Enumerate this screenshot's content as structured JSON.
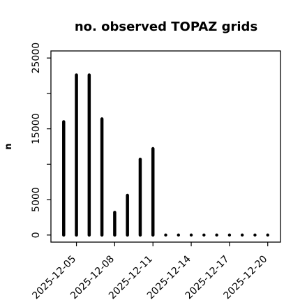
{
  "chart_data": {
    "type": "bar",
    "title": "no. observed TOPAZ grids",
    "xlabel": "",
    "ylabel": "n",
    "x_type": "date",
    "x": [
      "2025-12-04",
      "2025-12-05",
      "2025-12-06",
      "2025-12-07",
      "2025-12-08",
      "2025-12-09",
      "2025-12-10",
      "2025-12-11",
      "2025-12-12",
      "2025-12-13",
      "2025-12-14",
      "2025-12-15",
      "2025-12-16",
      "2025-12-17",
      "2025-12-18",
      "2025-12-19",
      "2025-12-20"
    ],
    "values": [
      16000,
      22600,
      22600,
      16400,
      3200,
      5600,
      10700,
      12200,
      0,
      0,
      0,
      0,
      0,
      0,
      0,
      0,
      0
    ],
    "xlim": [
      "2025-12-03",
      "2025-12-21"
    ],
    "ylim": [
      -1000,
      26000
    ],
    "yticks": [
      0,
      5000,
      15000,
      25000
    ],
    "ytick_marks": [
      0,
      5000,
      10000,
      15000,
      20000,
      25000
    ],
    "xticks": [
      "2025-12-05",
      "2025-12-08",
      "2025-12-11",
      "2025-12-14",
      "2025-12-17",
      "2025-12-20"
    ],
    "xtick_labels": [
      "2025-12-05",
      "2025-12-08",
      "2025-12-11",
      "2025-12-14",
      "2025-12-17",
      "2025-12-20"
    ],
    "highlight_tick": "2025-12-11",
    "grid": false,
    "legend": "none",
    "colors": {
      "bars": "#000000",
      "axes": "#000000",
      "text": "#000000",
      "highlight_tick": "#228B22"
    }
  }
}
